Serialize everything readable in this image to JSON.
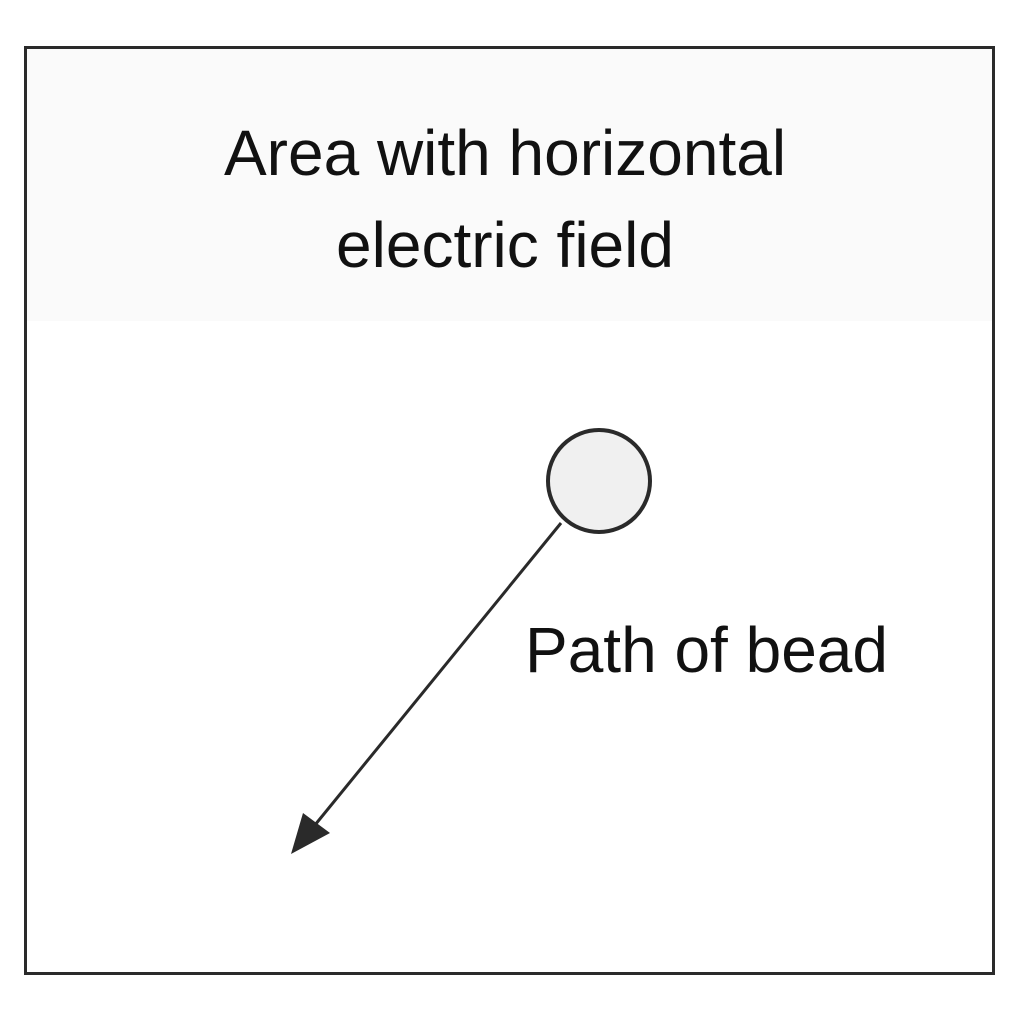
{
  "diagram": {
    "field_label_line1": "Area with horizontal",
    "field_label_line2": "electric field",
    "path_label": "Path of bead"
  },
  "colors": {
    "stroke": "#2a2a2a",
    "bead_fill": "#f0f0f0",
    "field_band": "#fafafa"
  }
}
